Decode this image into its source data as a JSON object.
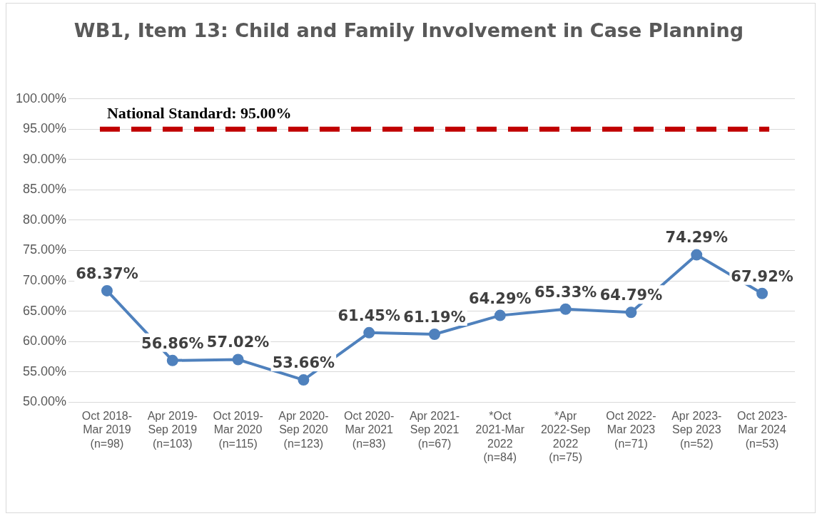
{
  "chart_data": {
    "type": "line",
    "title": "WB1, Item 13: Child and Family Involvement in Case Planning",
    "categories": [
      "Oct 2018-\nMar 2019\n(n=98)",
      "Apr 2019-\nSep 2019\n(n=103)",
      "Oct 2019-\nMar 2020\n(n=115)",
      "Apr 2020-\nSep 2020\n(n=123)",
      "Oct 2020-\nMar 2021\n(n=83)",
      "Apr 2021-\nSep 2021\n(n=67)",
      "*Oct\n2021-Mar\n2022\n(n=84)",
      "*Apr\n2022-Sep\n2022\n(n=75)",
      "Oct 2022-\nMar 2023\n(n=71)",
      "Apr 2023-\nSep 2023\n(n=52)",
      "Oct 2023-\nMar 2024\n(n=53)"
    ],
    "series": [
      {
        "color": "#4f81bd",
        "values": [
          68.37,
          56.86,
          57.02,
          53.66,
          61.45,
          61.19,
          64.29,
          65.33,
          64.79,
          74.29,
          67.92
        ],
        "value_labels": [
          "68.37%",
          "56.86%",
          "57.02%",
          "53.66%",
          "61.45%",
          "61.19%",
          "64.29%",
          "65.33%",
          "64.79%",
          "74.29%",
          "67.92%"
        ]
      }
    ],
    "ylim": [
      50,
      100
    ],
    "yticks": [
      {
        "value": 50,
        "label": "50.00%"
      },
      {
        "value": 55,
        "label": "55.00%"
      },
      {
        "value": 60,
        "label": "60.00%"
      },
      {
        "value": 65,
        "label": "65.00%"
      },
      {
        "value": 70,
        "label": "70.00%"
      },
      {
        "value": 75,
        "label": "75.00%"
      },
      {
        "value": 80,
        "label": "80.00%"
      },
      {
        "value": 85,
        "label": "85.00%"
      },
      {
        "value": 90,
        "label": "90.00%"
      },
      {
        "value": 95,
        "label": "95.00%"
      },
      {
        "value": 100,
        "label": "100.00%"
      }
    ],
    "grid": "y",
    "marker": "circle",
    "line_style": "solid",
    "ref_lines": [
      {
        "axis": "y",
        "value": 95,
        "label": "National Standard: 95.00%",
        "color": "#c00000",
        "line_style": "dashed"
      }
    ]
  }
}
